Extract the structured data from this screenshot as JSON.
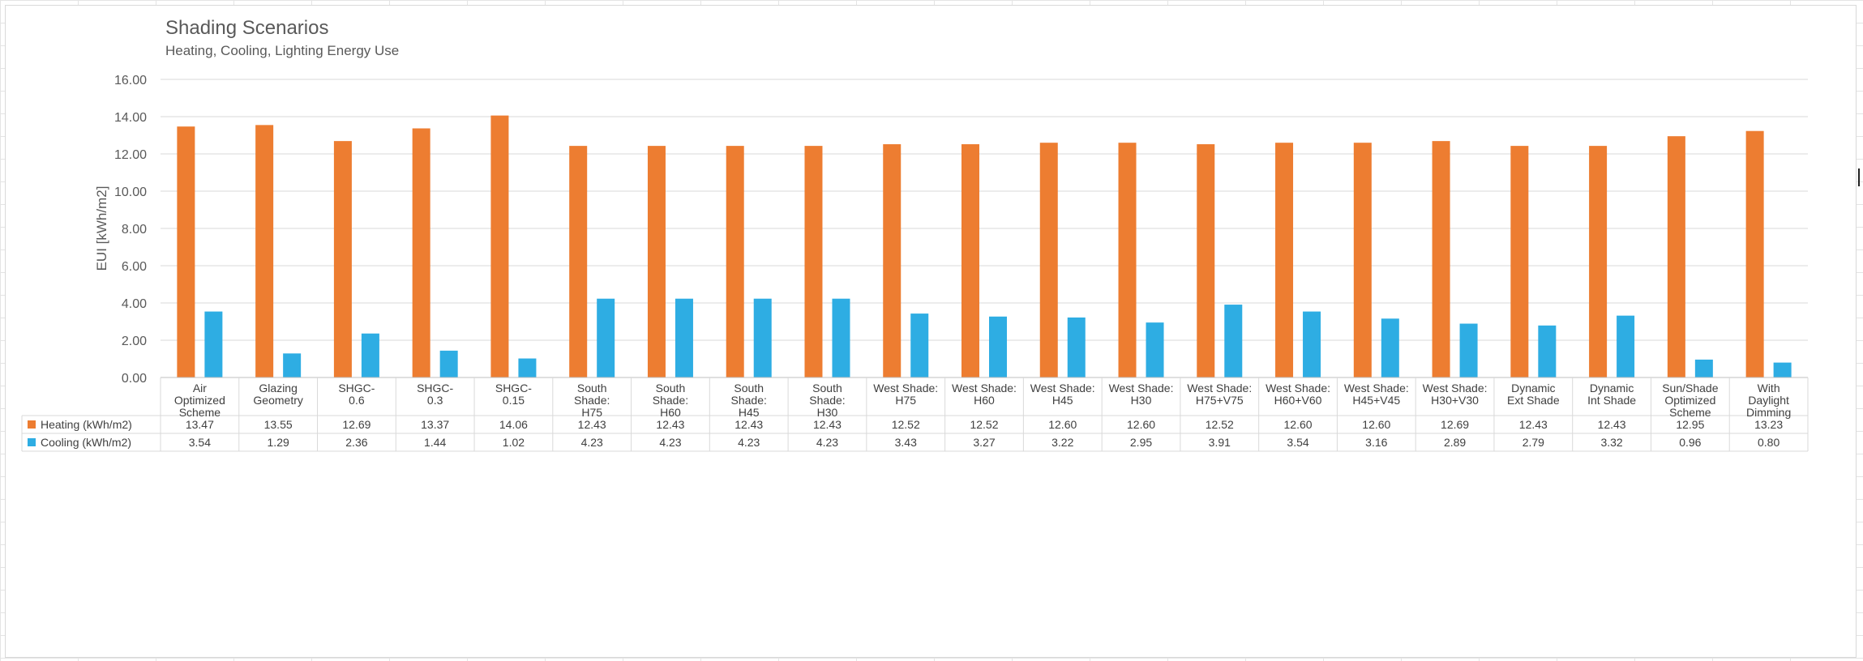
{
  "chart_data": {
    "type": "bar",
    "title": "Shading Scenarios",
    "subtitle": "Heating, Cooling, Lighting Energy Use",
    "ylabel": "EUI [kWh/m2]",
    "xlabel": "",
    "ylim": [
      0,
      16
    ],
    "ytick_step": 2,
    "ytick_labels": [
      "0.00",
      "2.00",
      "4.00",
      "6.00",
      "8.00",
      "10.00",
      "12.00",
      "14.00",
      "16.00"
    ],
    "grid": true,
    "legend": "data-table",
    "categories": [
      [
        "Air",
        "Optimized",
        "Scheme"
      ],
      [
        "Glazing",
        "Geometry"
      ],
      [
        "SHGC-",
        "0.6"
      ],
      [
        "SHGC-",
        "0.3"
      ],
      [
        "SHGC-",
        "0.15"
      ],
      [
        "South",
        "Shade:",
        "H75"
      ],
      [
        "South",
        "Shade:",
        "H60"
      ],
      [
        "South",
        "Shade:",
        "H45"
      ],
      [
        "South",
        "Shade:",
        "H30"
      ],
      [
        "West Shade:",
        "H75"
      ],
      [
        "West Shade:",
        "H60"
      ],
      [
        "West Shade:",
        "H45"
      ],
      [
        "West Shade:",
        "H30"
      ],
      [
        "West Shade:",
        "H75+V75"
      ],
      [
        "West Shade:",
        "H60+V60"
      ],
      [
        "West Shade:",
        "H45+V45"
      ],
      [
        "West Shade:",
        "H30+V30"
      ],
      [
        "Dynamic",
        "Ext Shade"
      ],
      [
        "Dynamic",
        "Int Shade"
      ],
      [
        "Sun/Shade",
        "Optimized",
        "Scheme"
      ],
      [
        "With",
        "Daylight",
        "Dimming"
      ]
    ],
    "series": [
      {
        "name": "Heating (kWh/m2)",
        "color": "#ED7D31",
        "values": [
          13.47,
          13.55,
          12.69,
          13.37,
          14.06,
          12.43,
          12.43,
          12.43,
          12.43,
          12.52,
          12.52,
          12.6,
          12.6,
          12.52,
          12.6,
          12.6,
          12.69,
          12.43,
          12.43,
          12.95,
          13.23
        ],
        "labels": [
          "13.47",
          "13.55",
          "12.69",
          "13.37",
          "14.06",
          "12.43",
          "12.43",
          "12.43",
          "12.43",
          "12.52",
          "12.52",
          "12.60",
          "12.60",
          "12.52",
          "12.60",
          "12.60",
          "12.69",
          "12.43",
          "12.43",
          "12.95",
          "13.23"
        ]
      },
      {
        "name": "Cooling (kWh/m2)",
        "color": "#2EADE3",
        "values": [
          3.54,
          1.29,
          2.36,
          1.44,
          1.02,
          4.23,
          4.23,
          4.23,
          4.23,
          3.43,
          3.27,
          3.22,
          2.95,
          3.91,
          3.54,
          3.16,
          2.89,
          2.79,
          3.32,
          0.96,
          0.8
        ],
        "labels": [
          "3.54",
          "1.29",
          "2.36",
          "1.44",
          "1.02",
          "4.23",
          "4.23",
          "4.23",
          "4.23",
          "3.43",
          "3.27",
          "3.22",
          "2.95",
          "3.91",
          "3.54",
          "3.16",
          "2.89",
          "2.79",
          "3.32",
          "0.96",
          "0.80"
        ]
      }
    ]
  }
}
